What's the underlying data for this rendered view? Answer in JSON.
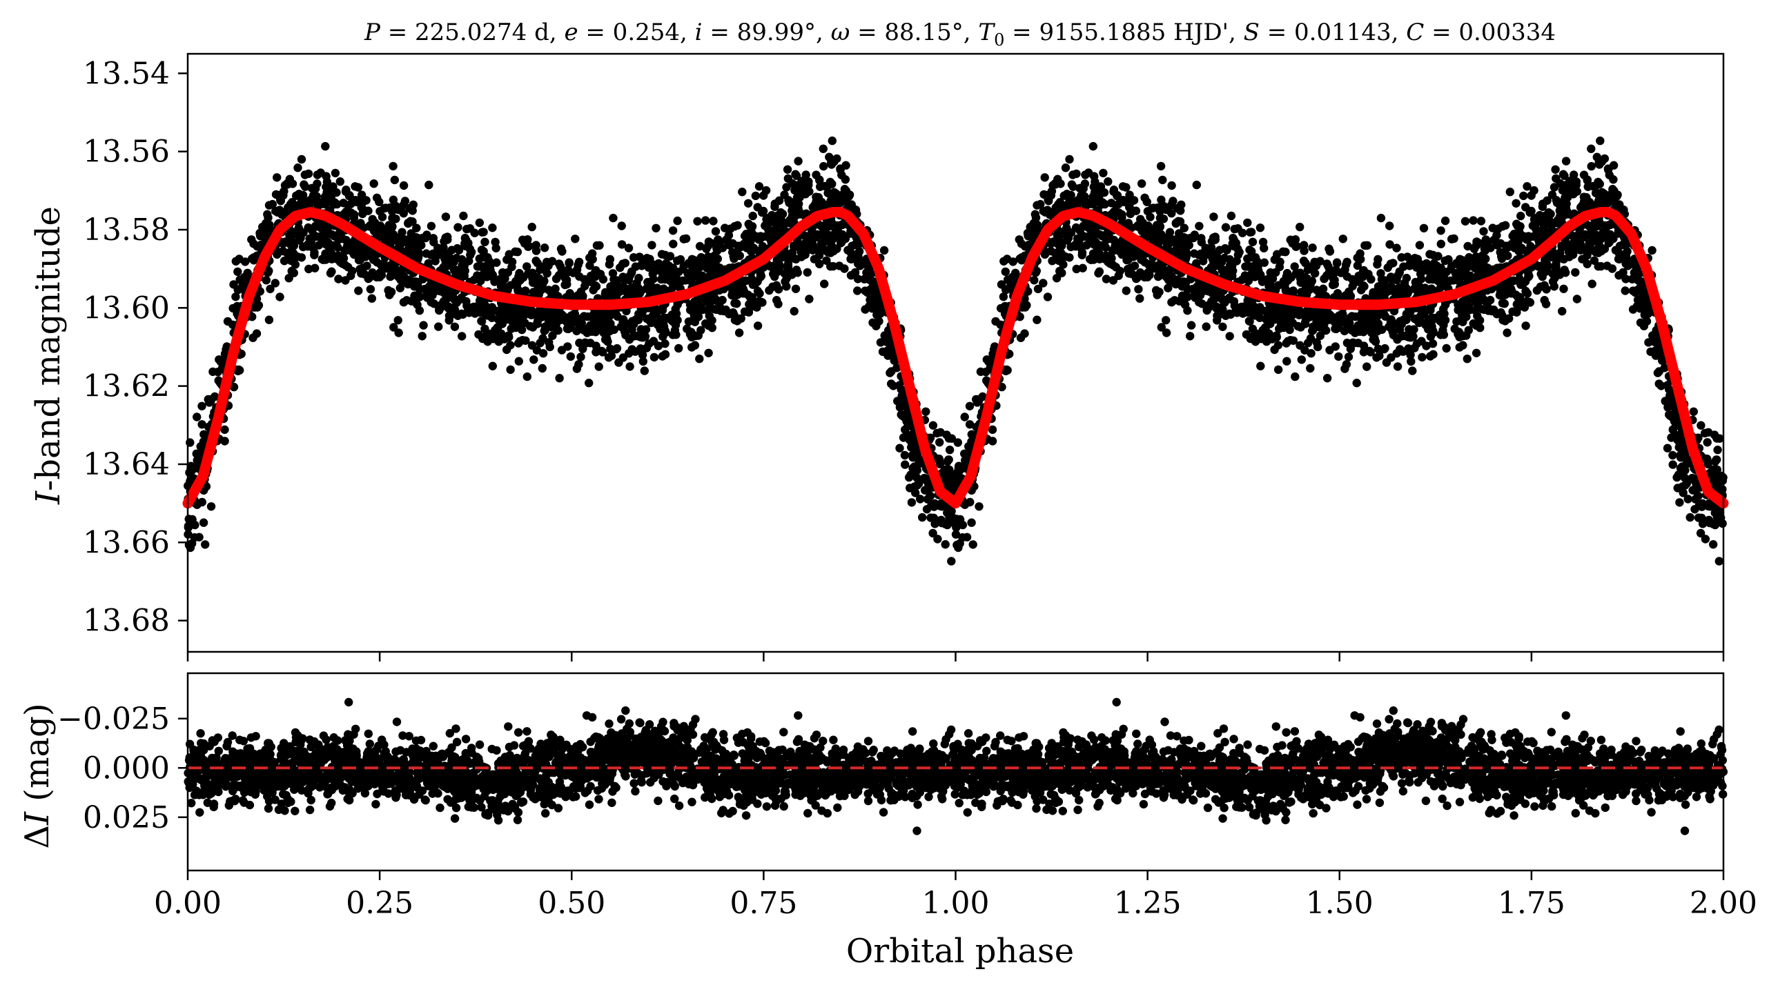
{
  "chart_data": [
    {
      "type": "scatter",
      "panel": "light-curve",
      "title": "P = 225.0274 d, e = 0.254, i = 89.99°, ω = 88.15°, T0 = 9155.1885 HJD', S = 0.01143, C = 0.00334",
      "title_parts": {
        "P_symbol": "P",
        "P_value": " = 225.0274 d, ",
        "e_symbol": "e",
        "e_value": " = 0.254, ",
        "i_symbol": "i",
        "i_value": " = 89.99°, ",
        "omega_symbol": "ω",
        "omega_value": " = 88.15°, ",
        "T0_symbol": "T",
        "T0_sub": "0",
        "T0_value": " = 9155.1885 HJD', ",
        "S_symbol": "S",
        "S_value": " = 0.01143, ",
        "C_symbol": "C",
        "C_value": " = 0.00334"
      },
      "ylabel_italic": "I",
      "ylabel_rest": "-band magnitude",
      "xlabel": "",
      "xlim": [
        0.0,
        2.0
      ],
      "ylim": [
        13.688,
        13.535
      ],
      "y_inverted": true,
      "y_ticks": [
        "13.54",
        "13.56",
        "13.58",
        "13.60",
        "13.62",
        "13.64",
        "13.66",
        "13.68"
      ],
      "y_tick_values": [
        13.54,
        13.56,
        13.58,
        13.6,
        13.62,
        13.64,
        13.66,
        13.68
      ],
      "x_tick_values": [
        0.0,
        0.25,
        0.5,
        0.75,
        1.0,
        1.25,
        1.5,
        1.75,
        2.0
      ],
      "series": [
        {
          "kind": "observations",
          "color": "#000000",
          "marker": "filled-circle",
          "phase": [
            0.0,
            0.025,
            0.05,
            0.075,
            0.1,
            0.125,
            0.15,
            0.175,
            0.2,
            0.25,
            0.3,
            0.35,
            0.4,
            0.45,
            0.5,
            0.55,
            0.6,
            0.65,
            0.7,
            0.75,
            0.8,
            0.825,
            0.85,
            0.875,
            0.9,
            0.925,
            0.95,
            0.975,
            1.0
          ],
          "magnitude": [
            13.65,
            13.638,
            13.616,
            13.598,
            13.585,
            13.578,
            13.576,
            13.577,
            13.58,
            13.585,
            13.59,
            13.594,
            13.597,
            13.599,
            13.6,
            13.6,
            13.599,
            13.596,
            13.592,
            13.586,
            13.579,
            13.576,
            13.577,
            13.584,
            13.598,
            13.617,
            13.636,
            13.647,
            13.65
          ],
          "scatter_sd": 0.007,
          "repeats_every_phase": 1.0
        },
        {
          "kind": "model",
          "color": "#ff0000",
          "line": "solid-thick",
          "phase": [
            0.0,
            0.02,
            0.04,
            0.06,
            0.08,
            0.1,
            0.12,
            0.14,
            0.16,
            0.18,
            0.2,
            0.25,
            0.3,
            0.35,
            0.4,
            0.45,
            0.5,
            0.55,
            0.6,
            0.65,
            0.7,
            0.75,
            0.78,
            0.8,
            0.82,
            0.84,
            0.85,
            0.86,
            0.88,
            0.9,
            0.92,
            0.94,
            0.96,
            0.98,
            1.0
          ],
          "magnitude": [
            13.65,
            13.643,
            13.628,
            13.611,
            13.597,
            13.587,
            13.58,
            13.5765,
            13.5755,
            13.5765,
            13.5785,
            13.5845,
            13.59,
            13.594,
            13.597,
            13.5985,
            13.5992,
            13.5992,
            13.5985,
            13.5965,
            13.593,
            13.5875,
            13.5825,
            13.579,
            13.5765,
            13.5755,
            13.5755,
            13.5765,
            13.581,
            13.59,
            13.604,
            13.62,
            13.636,
            13.647,
            13.65
          ],
          "repeats_every_phase": 1.0
        }
      ]
    },
    {
      "type": "scatter",
      "panel": "residuals",
      "title": "",
      "ylabel_prefix": "Δ",
      "ylabel_italic": "I",
      "ylabel_rest": " (mag)",
      "xlabel": "Orbital phase",
      "xlim": [
        0.0,
        2.0
      ],
      "ylim": [
        0.052,
        -0.048
      ],
      "y_inverted": true,
      "y_ticks": [
        "−0.025",
        "0.000",
        "0.025"
      ],
      "y_tick_values": [
        -0.025,
        0.0,
        0.025
      ],
      "x_ticks": [
        "0.00",
        "0.25",
        "0.50",
        "0.75",
        "1.00",
        "1.25",
        "1.50",
        "1.75",
        "2.00"
      ],
      "x_tick_values": [
        0.0,
        0.25,
        0.5,
        0.75,
        1.0,
        1.25,
        1.5,
        1.75,
        2.0
      ],
      "series": [
        {
          "kind": "residuals",
          "color": "#000000",
          "marker": "filled-circle",
          "phase": [
            0.0,
            0.1,
            0.2,
            0.3,
            0.4,
            0.5,
            0.6,
            0.7,
            0.8,
            0.9,
            1.0
          ],
          "mean_residual": [
            0.0,
            0.003,
            -0.003,
            0.004,
            0.006,
            0.0,
            -0.008,
            0.003,
            0.002,
            0.004,
            0.0
          ],
          "scatter_sd": 0.008,
          "repeats_every_phase": 1.0
        },
        {
          "kind": "zero-line",
          "color": "#d62728",
          "line": "dashed",
          "value": 0.0
        }
      ]
    }
  ]
}
